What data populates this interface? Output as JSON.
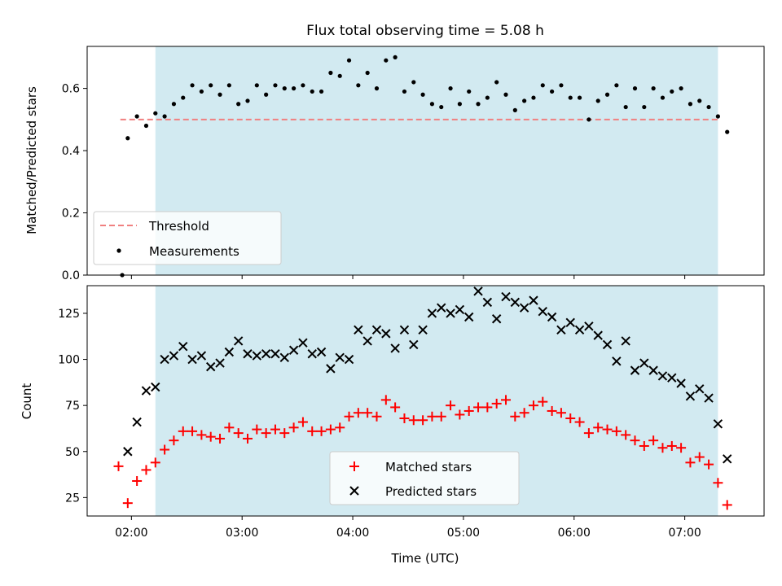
{
  "title": "Flux total observing time = 5.08 h",
  "colors": {
    "observing_window": "#add8e6",
    "threshold": "#f08080",
    "measurements": "#000000",
    "matched": "#ff0000",
    "predicted": "#000000"
  },
  "chart_data": [
    {
      "type": "scatter",
      "ylabel": "Matched/Predicted stars",
      "xlim": [
        "01:36",
        "07:43"
      ],
      "ylim": [
        0,
        0.735
      ],
      "yticks": [
        0.0,
        0.2,
        0.4,
        0.6
      ],
      "ytick_labels": [
        "0.0",
        "0.2",
        "0.4",
        "0.6"
      ],
      "observing_window": [
        "02:13",
        "07:18"
      ],
      "threshold": {
        "label": "Threshold",
        "value": 0.5,
        "x_range": [
          "01:54",
          "07:18"
        ],
        "style": "dashed"
      },
      "legend": {
        "placement": "lower-left",
        "entries": [
          "Threshold",
          "Measurements"
        ]
      },
      "series": [
        {
          "name": "Measurements",
          "marker": "dot",
          "points": [
            [
              "01:55",
              0.0
            ],
            [
              "01:58",
              0.44
            ],
            [
              "02:03",
              0.51
            ],
            [
              "02:08",
              0.48
            ],
            [
              "02:13",
              0.52
            ],
            [
              "02:18",
              0.51
            ],
            [
              "02:23",
              0.55
            ],
            [
              "02:28",
              0.57
            ],
            [
              "02:33",
              0.61
            ],
            [
              "02:38",
              0.59
            ],
            [
              "02:43",
              0.61
            ],
            [
              "02:48",
              0.58
            ],
            [
              "02:53",
              0.61
            ],
            [
              "02:58",
              0.55
            ],
            [
              "03:03",
              0.56
            ],
            [
              "03:08",
              0.61
            ],
            [
              "03:13",
              0.58
            ],
            [
              "03:18",
              0.61
            ],
            [
              "03:23",
              0.6
            ],
            [
              "03:28",
              0.6
            ],
            [
              "03:33",
              0.61
            ],
            [
              "03:38",
              0.59
            ],
            [
              "03:43",
              0.59
            ],
            [
              "03:48",
              0.65
            ],
            [
              "03:53",
              0.64
            ],
            [
              "03:58",
              0.69
            ],
            [
              "04:03",
              0.61
            ],
            [
              "04:08",
              0.65
            ],
            [
              "04:13",
              0.6
            ],
            [
              "04:18",
              0.69
            ],
            [
              "04:23",
              0.7
            ],
            [
              "04:28",
              0.59
            ],
            [
              "04:33",
              0.62
            ],
            [
              "04:38",
              0.58
            ],
            [
              "04:43",
              0.55
            ],
            [
              "04:48",
              0.54
            ],
            [
              "04:53",
              0.6
            ],
            [
              "04:58",
              0.55
            ],
            [
              "05:03",
              0.59
            ],
            [
              "05:08",
              0.55
            ],
            [
              "05:13",
              0.57
            ],
            [
              "05:18",
              0.62
            ],
            [
              "05:23",
              0.58
            ],
            [
              "05:28",
              0.53
            ],
            [
              "05:33",
              0.56
            ],
            [
              "05:38",
              0.57
            ],
            [
              "05:43",
              0.61
            ],
            [
              "05:48",
              0.59
            ],
            [
              "05:53",
              0.61
            ],
            [
              "05:58",
              0.57
            ],
            [
              "06:03",
              0.57
            ],
            [
              "06:08",
              0.5
            ],
            [
              "06:13",
              0.56
            ],
            [
              "06:18",
              0.58
            ],
            [
              "06:23",
              0.61
            ],
            [
              "06:28",
              0.54
            ],
            [
              "06:33",
              0.6
            ],
            [
              "06:38",
              0.54
            ],
            [
              "06:43",
              0.6
            ],
            [
              "06:48",
              0.57
            ],
            [
              "06:53",
              0.59
            ],
            [
              "06:58",
              0.6
            ],
            [
              "07:03",
              0.55
            ],
            [
              "07:08",
              0.56
            ],
            [
              "07:13",
              0.54
            ],
            [
              "07:18",
              0.51
            ],
            [
              "07:23",
              0.46
            ]
          ]
        }
      ]
    },
    {
      "type": "scatter",
      "xlabel": "Time (UTC)",
      "ylabel": "Count",
      "xlim": [
        "01:36",
        "07:43"
      ],
      "ylim": [
        15,
        140
      ],
      "xticks": [
        "02:00",
        "03:00",
        "04:00",
        "05:00",
        "06:00",
        "07:00"
      ],
      "yticks": [
        25,
        50,
        75,
        100,
        125
      ],
      "ytick_labels": [
        "25",
        "50",
        "75",
        "100",
        "125"
      ],
      "observing_window": [
        "02:13",
        "07:18"
      ],
      "legend": {
        "placement": "lower-center",
        "entries": [
          "Matched stars",
          "Predicted stars"
        ]
      },
      "series": [
        {
          "name": "Matched stars",
          "marker": "plus",
          "points": [
            [
              "01:53",
              42
            ],
            [
              "01:58",
              22
            ],
            [
              "02:03",
              34
            ],
            [
              "02:08",
              40
            ],
            [
              "02:13",
              44
            ],
            [
              "02:18",
              51
            ],
            [
              "02:23",
              56
            ],
            [
              "02:28",
              61
            ],
            [
              "02:33",
              61
            ],
            [
              "02:38",
              59
            ],
            [
              "02:43",
              58
            ],
            [
              "02:48",
              57
            ],
            [
              "02:53",
              63
            ],
            [
              "02:58",
              60
            ],
            [
              "03:03",
              57
            ],
            [
              "03:08",
              62
            ],
            [
              "03:13",
              60
            ],
            [
              "03:18",
              62
            ],
            [
              "03:23",
              60
            ],
            [
              "03:28",
              63
            ],
            [
              "03:33",
              66
            ],
            [
              "03:38",
              61
            ],
            [
              "03:43",
              61
            ],
            [
              "03:48",
              62
            ],
            [
              "03:53",
              63
            ],
            [
              "03:58",
              69
            ],
            [
              "04:03",
              71
            ],
            [
              "04:08",
              71
            ],
            [
              "04:13",
              69
            ],
            [
              "04:18",
              78
            ],
            [
              "04:23",
              74
            ],
            [
              "04:28",
              68
            ],
            [
              "04:33",
              67
            ],
            [
              "04:38",
              67
            ],
            [
              "04:43",
              69
            ],
            [
              "04:48",
              69
            ],
            [
              "04:53",
              75
            ],
            [
              "04:58",
              70
            ],
            [
              "05:03",
              72
            ],
            [
              "05:08",
              74
            ],
            [
              "05:13",
              74
            ],
            [
              "05:18",
              76
            ],
            [
              "05:23",
              78
            ],
            [
              "05:28",
              69
            ],
            [
              "05:33",
              71
            ],
            [
              "05:38",
              75
            ],
            [
              "05:43",
              77
            ],
            [
              "05:48",
              72
            ],
            [
              "05:53",
              71
            ],
            [
              "05:58",
              68
            ],
            [
              "06:03",
              66
            ],
            [
              "06:08",
              60
            ],
            [
              "06:13",
              63
            ],
            [
              "06:18",
              62
            ],
            [
              "06:23",
              61
            ],
            [
              "06:28",
              59
            ],
            [
              "06:33",
              56
            ],
            [
              "06:38",
              53
            ],
            [
              "06:43",
              56
            ],
            [
              "06:48",
              52
            ],
            [
              "06:53",
              53
            ],
            [
              "06:58",
              52
            ],
            [
              "07:03",
              44
            ],
            [
              "07:08",
              47
            ],
            [
              "07:13",
              43
            ],
            [
              "07:18",
              33
            ],
            [
              "07:23",
              21
            ]
          ]
        },
        {
          "name": "Predicted stars",
          "marker": "x",
          "points": [
            [
              "01:58",
              50
            ],
            [
              "02:03",
              66
            ],
            [
              "02:08",
              83
            ],
            [
              "02:13",
              85
            ],
            [
              "02:18",
              100
            ],
            [
              "02:23",
              102
            ],
            [
              "02:28",
              107
            ],
            [
              "02:33",
              100
            ],
            [
              "02:38",
              102
            ],
            [
              "02:43",
              96
            ],
            [
              "02:48",
              98
            ],
            [
              "02:53",
              104
            ],
            [
              "02:58",
              110
            ],
            [
              "03:03",
              103
            ],
            [
              "03:08",
              102
            ],
            [
              "03:13",
              103
            ],
            [
              "03:18",
              103
            ],
            [
              "03:23",
              101
            ],
            [
              "03:28",
              105
            ],
            [
              "03:33",
              109
            ],
            [
              "03:38",
              103
            ],
            [
              "03:43",
              104
            ],
            [
              "03:48",
              95
            ],
            [
              "03:53",
              101
            ],
            [
              "03:58",
              100
            ],
            [
              "04:03",
              116
            ],
            [
              "04:08",
              110
            ],
            [
              "04:13",
              116
            ],
            [
              "04:18",
              114
            ],
            [
              "04:23",
              106
            ],
            [
              "04:28",
              116
            ],
            [
              "04:33",
              108
            ],
            [
              "04:38",
              116
            ],
            [
              "04:43",
              125
            ],
            [
              "04:48",
              128
            ],
            [
              "04:53",
              125
            ],
            [
              "04:58",
              127
            ],
            [
              "05:03",
              123
            ],
            [
              "05:08",
              137
            ],
            [
              "05:13",
              131
            ],
            [
              "05:18",
              122
            ],
            [
              "05:23",
              134
            ],
            [
              "05:28",
              131
            ],
            [
              "05:33",
              128
            ],
            [
              "05:38",
              132
            ],
            [
              "05:43",
              126
            ],
            [
              "05:48",
              123
            ],
            [
              "05:53",
              116
            ],
            [
              "05:58",
              120
            ],
            [
              "06:03",
              116
            ],
            [
              "06:08",
              118
            ],
            [
              "06:13",
              113
            ],
            [
              "06:18",
              108
            ],
            [
              "06:23",
              99
            ],
            [
              "06:28",
              110
            ],
            [
              "06:33",
              94
            ],
            [
              "06:38",
              98
            ],
            [
              "06:43",
              94
            ],
            [
              "06:48",
              91
            ],
            [
              "06:53",
              90
            ],
            [
              "06:58",
              87
            ],
            [
              "07:03",
              80
            ],
            [
              "07:08",
              84
            ],
            [
              "07:13",
              79
            ],
            [
              "07:18",
              65
            ],
            [
              "07:23",
              46
            ]
          ]
        }
      ]
    }
  ]
}
